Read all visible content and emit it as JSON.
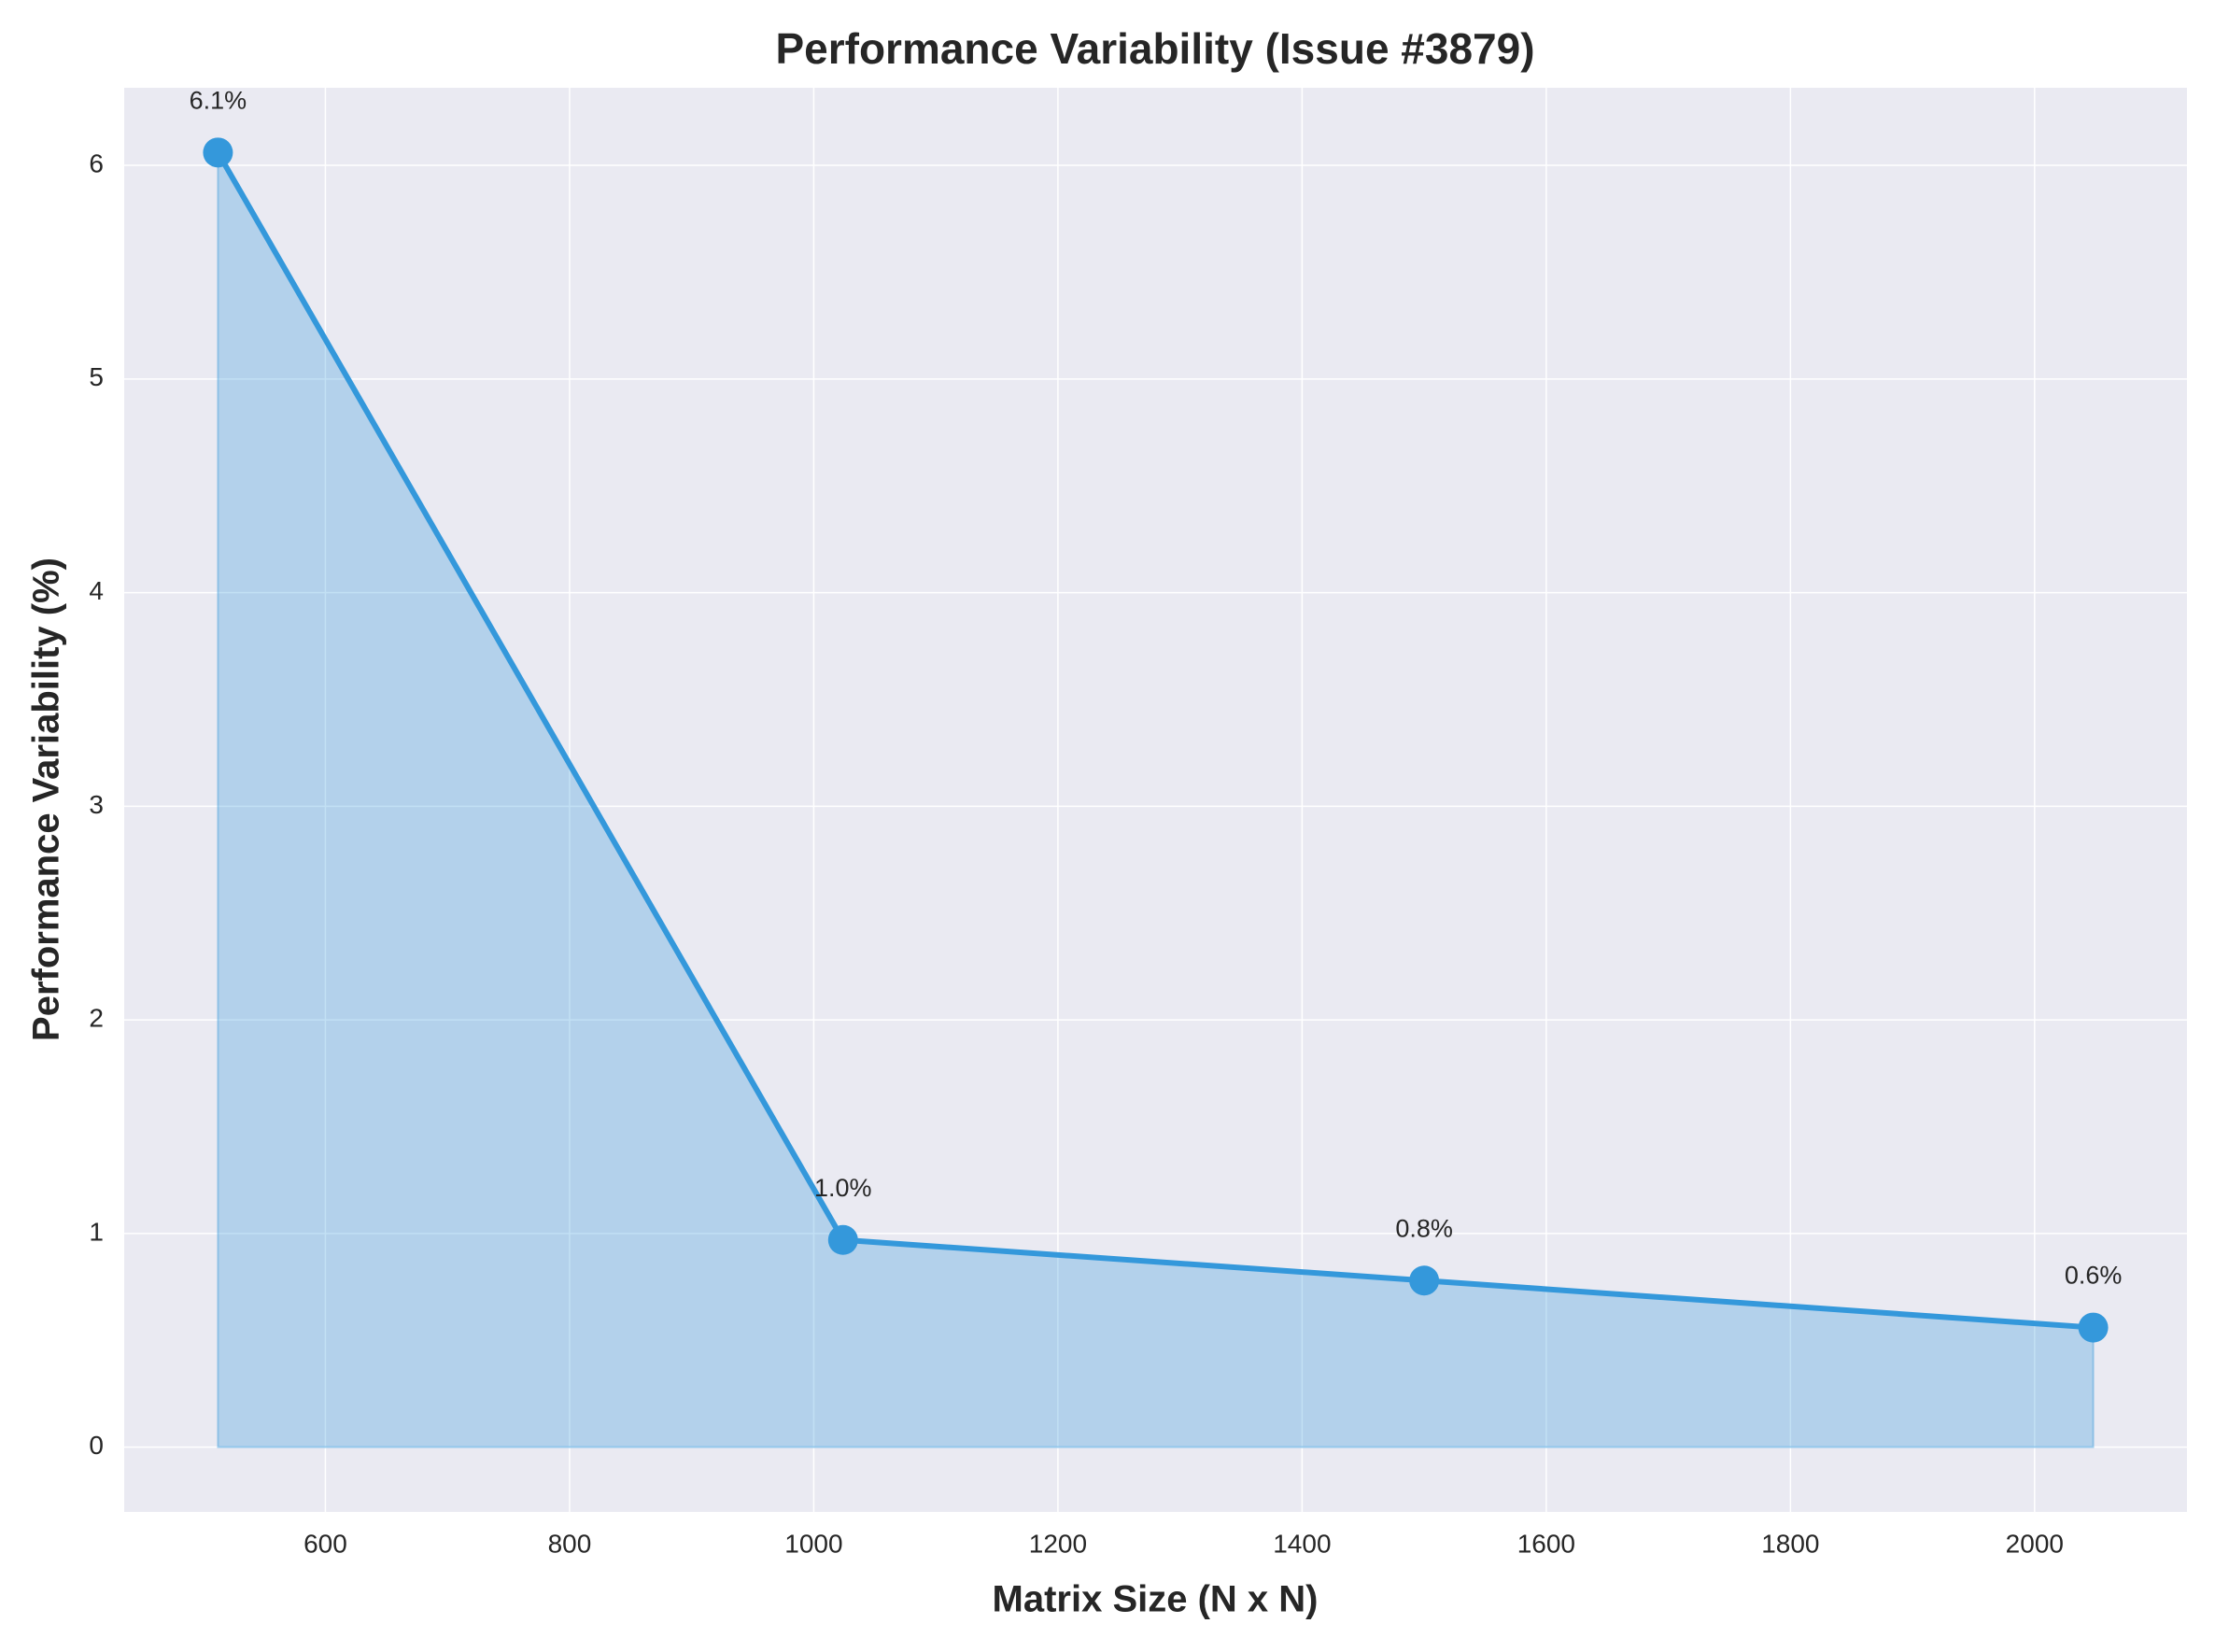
{
  "chart_data": {
    "type": "area-line",
    "title": "Performance Variability (Issue #3879)",
    "xlabel": "Matrix Size (N x N)",
    "ylabel": "Performance Variability (%)",
    "x": [
      512,
      1024,
      1500,
      2048
    ],
    "series": [
      {
        "color": "#3498db",
        "values": [
          6.06,
          0.97,
          0.78,
          0.56
        ],
        "value_labels": [
          "6.1%",
          "1.0%",
          "0.8%",
          "0.6%"
        ]
      }
    ],
    "xlim": [
      435.2,
      2124.8
    ],
    "ylim": [
      -0.303,
      6.363
    ],
    "xticks": [
      600,
      800,
      1000,
      1200,
      1400,
      1600,
      1800,
      2000
    ],
    "yticks": [
      0,
      1,
      2,
      3,
      4,
      5,
      6
    ],
    "grid": true
  }
}
